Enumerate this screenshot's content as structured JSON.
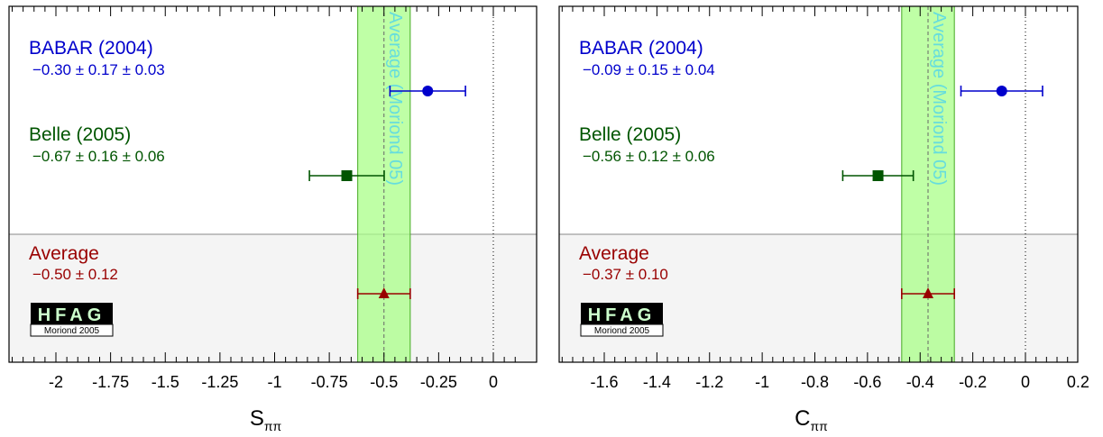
{
  "chart_data": [
    {
      "type": "scatter",
      "xlabel_main": "S",
      "xlabel_sub": "ππ",
      "xlim": [
        -2.2,
        0.1
      ],
      "ticks": [
        {
          "value": -2,
          "label": "-2"
        },
        {
          "value": -1.75,
          "label": "-1.75"
        },
        {
          "value": -1.5,
          "label": "-1.5"
        },
        {
          "value": -1.25,
          "label": "-1.25"
        },
        {
          "value": -1,
          "label": "-1"
        },
        {
          "value": -0.75,
          "label": "-0.75"
        },
        {
          "value": -0.5,
          "label": "-0.5"
        },
        {
          "value": -0.25,
          "label": "-0.25"
        },
        {
          "value": 0,
          "label": "0"
        }
      ],
      "band": {
        "center": -0.5,
        "low": -0.62,
        "high": -0.38,
        "label": "Average (Moriond 05)"
      },
      "measurements": [
        {
          "name": "BABAR (2004)",
          "value_text": "−0.30 ± 0.17 ± 0.03",
          "x": -0.3,
          "err_low": 0.1726,
          "err_high": 0.1726,
          "marker": "circle",
          "color": "#0000cc"
        },
        {
          "name": "Belle (2005)",
          "value_text": "−0.67 ± 0.16 ± 0.06",
          "x": -0.67,
          "err_low": 0.1709,
          "err_high": 0.1709,
          "marker": "square",
          "color": "#005500"
        },
        {
          "name": "Average",
          "value_text": "−0.50 ± 0.12",
          "x": -0.5,
          "err_low": 0.12,
          "err_high": 0.12,
          "marker": "triangle",
          "color": "#990000"
        }
      ],
      "zero_line": 0
    },
    {
      "type": "scatter",
      "xlabel_main": "C",
      "xlabel_sub": "ππ",
      "xlim": [
        -1.75,
        0.2
      ],
      "ticks": [
        {
          "value": -1.6,
          "label": "-1.6"
        },
        {
          "value": -1.4,
          "label": "-1.4"
        },
        {
          "value": -1.2,
          "label": "-1.2"
        },
        {
          "value": -1,
          "label": "-1"
        },
        {
          "value": -0.8,
          "label": "-0.8"
        },
        {
          "value": -0.6,
          "label": "-0.6"
        },
        {
          "value": -0.4,
          "label": "-0.4"
        },
        {
          "value": -0.2,
          "label": "-0.2"
        },
        {
          "value": 0,
          "label": "0"
        },
        {
          "value": 0.2,
          "label": "0.2"
        }
      ],
      "band": {
        "center": -0.37,
        "low": -0.47,
        "high": -0.27,
        "label": "Average (Moriond 05)"
      },
      "measurements": [
        {
          "name": "BABAR (2004)",
          "value_text": "−0.09 ± 0.15 ± 0.04",
          "x": -0.09,
          "err_low": 0.155,
          "err_high": 0.155,
          "marker": "circle",
          "color": "#0000cc"
        },
        {
          "name": "Belle (2005)",
          "value_text": "−0.56 ± 0.12 ± 0.06",
          "x": -0.56,
          "err_low": 0.134,
          "err_high": 0.134,
          "marker": "square",
          "color": "#005500"
        },
        {
          "name": "Average",
          "value_text": "−0.37 ± 0.10",
          "x": -0.37,
          "err_low": 0.1,
          "err_high": 0.1,
          "marker": "triangle",
          "color": "#990000"
        }
      ],
      "zero_line": 0
    }
  ],
  "logo": {
    "text": "HFAG",
    "subtext": "Moriond 2005"
  }
}
